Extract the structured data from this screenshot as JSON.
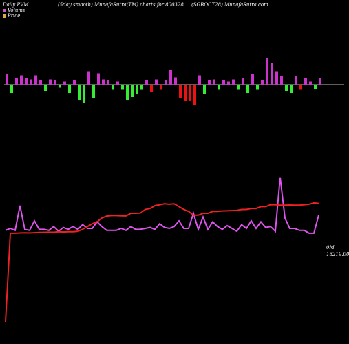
{
  "header": {
    "left": "Daily PVM",
    "center": "(5day smooth) MunafaSutra(TM) charts for 800328",
    "right": "(SGBOCT28) MunafaSutra.com"
  },
  "legend": {
    "volume": "Volume",
    "price": "Price"
  },
  "colors": {
    "background": "#000000",
    "volume_up": "#cc33cc",
    "volume_down_green": "#33ee33",
    "volume_down_red": "#ee1111",
    "volume_line": "#dd55ee",
    "price_line": "#ee2222",
    "volume_legend_swatch": "#cc55cc",
    "price_legend_swatch": "#ddaa44"
  },
  "right_labels": {
    "volume": "0M",
    "price": "18219.00"
  },
  "chart_data": {
    "type": "line",
    "x": [
      1,
      2,
      3,
      4,
      5,
      6,
      7,
      8,
      9,
      10,
      11,
      12,
      13,
      14,
      15,
      16,
      17,
      18,
      19,
      20,
      21,
      22,
      23,
      24,
      25,
      26,
      27,
      28,
      29,
      30,
      31,
      32,
      33,
      34,
      35,
      36,
      37,
      38,
      39,
      40,
      41,
      42,
      43,
      44,
      45,
      46,
      47,
      48,
      49,
      50,
      51,
      52,
      53,
      54,
      55,
      56,
      57,
      58,
      59,
      60,
      61,
      62,
      63,
      64,
      65,
      66
    ],
    "series": [
      {
        "name": "Volume",
        "values": [
          42,
          44,
          42,
          68,
          43,
          42,
          52,
          43,
          43,
          42,
          46,
          41,
          45,
          43,
          46,
          43,
          48,
          44,
          44,
          51,
          46,
          42,
          42,
          42,
          44,
          42,
          46,
          43,
          43,
          44,
          45,
          43,
          49,
          45,
          44,
          46,
          52,
          44,
          44,
          60,
          43,
          56,
          43,
          51,
          46,
          43,
          47,
          44,
          41,
          48,
          44,
          52,
          44,
          51,
          45,
          46,
          41,
          98,
          55,
          44,
          44,
          42,
          42,
          39,
          39,
          58
        ],
        "max_label": "0M"
      },
      {
        "name": "Price",
        "values": [
          -55,
          39,
          39,
          39.3,
          39.5,
          39.3,
          39.6,
          39.8,
          39.9,
          40.1,
          40,
          40.5,
          40.3,
          40.5,
          40.5,
          41,
          43,
          46,
          49,
          51,
          55,
          57,
          57.5,
          57.5,
          57.3,
          57.2,
          60,
          60,
          60.2,
          64,
          65,
          68,
          69,
          70,
          69.5,
          70,
          67,
          64,
          62,
          58,
          58,
          60,
          60,
          62,
          62,
          62.5,
          62.6,
          62.8,
          63,
          64,
          64,
          65,
          65,
          67,
          67,
          69,
          69,
          68.5,
          68.5,
          68.7,
          68.5,
          68.5,
          69,
          69.5,
          71,
          70.5
        ],
        "last_label": "18219.00"
      }
    ],
    "volume_bars": [
      {
        "dir": "up",
        "value": 10
      },
      {
        "dir": "down",
        "color": "green",
        "value": 8
      },
      {
        "dir": "up",
        "value": 6
      },
      {
        "dir": "up",
        "value": 9
      },
      {
        "dir": "up",
        "value": 6
      },
      {
        "dir": "up",
        "value": 5
      },
      {
        "dir": "up",
        "value": 9
      },
      {
        "dir": "up",
        "value": 4
      },
      {
        "dir": "down",
        "color": "green",
        "value": 6
      },
      {
        "dir": "up",
        "value": 5
      },
      {
        "dir": "up",
        "value": 4
      },
      {
        "dir": "down",
        "color": "green",
        "value": 3
      },
      {
        "dir": "up",
        "value": 3
      },
      {
        "dir": "down",
        "color": "green",
        "value": 8
      },
      {
        "dir": "up",
        "value": 4
      },
      {
        "dir": "down",
        "color": "green",
        "value": 15
      },
      {
        "dir": "down",
        "color": "green",
        "value": 18
      },
      {
        "dir": "up",
        "value": 13
      },
      {
        "dir": "down",
        "color": "green",
        "value": 13
      },
      {
        "dir": "up",
        "value": 11
      },
      {
        "dir": "up",
        "value": 5
      },
      {
        "dir": "up",
        "value": 4
      },
      {
        "dir": "down",
        "color": "green",
        "value": 5
      },
      {
        "dir": "up",
        "value": 3
      },
      {
        "dir": "down",
        "color": "green",
        "value": 5
      },
      {
        "dir": "down",
        "color": "green",
        "value": 15
      },
      {
        "dir": "down",
        "color": "green",
        "value": 12
      },
      {
        "dir": "down",
        "color": "green",
        "value": 9
      },
      {
        "dir": "down",
        "color": "green",
        "value": 5
      },
      {
        "dir": "up",
        "value": 4
      },
      {
        "dir": "down",
        "color": "red",
        "value": 7
      },
      {
        "dir": "up",
        "value": 5
      },
      {
        "dir": "down",
        "color": "red",
        "value": 5
      },
      {
        "dir": "up",
        "value": 4
      },
      {
        "dir": "up",
        "value": 14
      },
      {
        "dir": "up",
        "value": 7
      },
      {
        "dir": "down",
        "color": "red",
        "value": 13
      },
      {
        "dir": "down",
        "color": "red",
        "value": 16
      },
      {
        "dir": "down",
        "color": "red",
        "value": 16
      },
      {
        "dir": "down",
        "color": "red",
        "value": 20
      },
      {
        "dir": "up",
        "value": 9
      },
      {
        "dir": "down",
        "color": "green",
        "value": 9
      },
      {
        "dir": "up",
        "value": 4
      },
      {
        "dir": "up",
        "value": 5
      },
      {
        "dir": "down",
        "color": "green",
        "value": 5
      },
      {
        "dir": "up",
        "value": 4
      },
      {
        "dir": "up",
        "value": 3
      },
      {
        "dir": "up",
        "value": 5
      },
      {
        "dir": "down",
        "color": "green",
        "value": 5
      },
      {
        "dir": "up",
        "value": 6
      },
      {
        "dir": "down",
        "color": "green",
        "value": 8
      },
      {
        "dir": "up",
        "value": 10
      },
      {
        "dir": "down",
        "color": "green",
        "value": 5
      },
      {
        "dir": "up",
        "value": 4
      },
      {
        "dir": "up",
        "value": 26
      },
      {
        "dir": "up",
        "value": 21
      },
      {
        "dir": "up",
        "value": 13
      },
      {
        "dir": "up",
        "value": 8
      },
      {
        "dir": "down",
        "color": "green",
        "value": 6
      },
      {
        "dir": "down",
        "color": "green",
        "value": 8
      },
      {
        "dir": "up",
        "value": 8
      },
      {
        "dir": "down",
        "color": "red",
        "value": 5
      },
      {
        "dir": "up",
        "value": 6
      },
      {
        "dir": "up",
        "value": 3
      },
      {
        "dir": "down",
        "color": "green",
        "value": 4
      },
      {
        "dir": "up",
        "value": 6
      }
    ],
    "volume_bar_scale_max": 30,
    "line_scale": {
      "min": -60,
      "max": 100
    },
    "xlabel": "",
    "ylabel": "",
    "grid": false
  }
}
